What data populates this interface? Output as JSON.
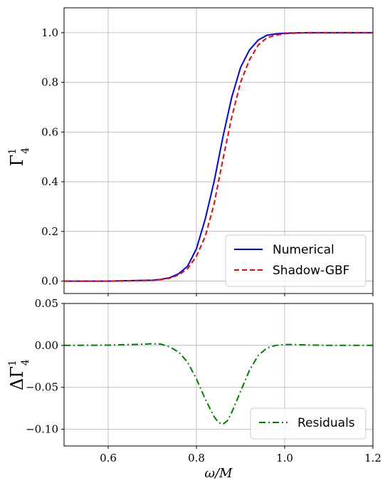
{
  "chart_data": [
    {
      "type": "line",
      "ylabel": "Γ",
      "ylabel_sup": "1",
      "ylabel_sub": "4",
      "xlim": [
        0.5,
        1.2
      ],
      "ylim": [
        -0.05,
        1.1
      ],
      "xticks": [
        0.6,
        0.8,
        1.0,
        1.2
      ],
      "xtick_labels": [
        "0.6",
        "0.8",
        "1.0",
        "1.2"
      ],
      "show_xtick_labels": false,
      "yticks": [
        0.0,
        0.2,
        0.4,
        0.6,
        0.8,
        1.0
      ],
      "ytick_labels": [
        "0.0",
        "0.2",
        "0.4",
        "0.6",
        "0.8",
        "1.0"
      ],
      "grid": true,
      "legend": "bottom-right",
      "series": [
        {
          "name": "Numerical",
          "color": "#0000ff",
          "style": "solid",
          "x": [
            0.5,
            0.6,
            0.7,
            0.72,
            0.74,
            0.76,
            0.78,
            0.8,
            0.82,
            0.84,
            0.86,
            0.88,
            0.9,
            0.92,
            0.94,
            0.96,
            0.98,
            1.0,
            1.02,
            1.05,
            1.1,
            1.2
          ],
          "y": [
            0.0,
            0.0,
            0.004,
            0.007,
            0.014,
            0.03,
            0.06,
            0.13,
            0.25,
            0.4,
            0.58,
            0.74,
            0.86,
            0.93,
            0.97,
            0.99,
            0.995,
            0.998,
            0.999,
            1.0,
            1.0,
            1.0
          ]
        },
        {
          "name": "Shadow-GBF",
          "color": "#ff0000",
          "style": "dashed",
          "x": [
            0.5,
            0.6,
            0.7,
            0.72,
            0.74,
            0.76,
            0.78,
            0.8,
            0.82,
            0.84,
            0.86,
            0.88,
            0.9,
            0.92,
            0.94,
            0.96,
            0.98,
            1.0,
            1.02,
            1.05,
            1.1,
            1.2
          ],
          "y": [
            0.0,
            0.0,
            0.003,
            0.006,
            0.012,
            0.025,
            0.05,
            0.1,
            0.18,
            0.31,
            0.49,
            0.66,
            0.8,
            0.89,
            0.95,
            0.98,
            0.99,
            0.996,
            0.998,
            1.0,
            1.0,
            1.0
          ]
        }
      ]
    },
    {
      "type": "line",
      "xlabel": "ω/M",
      "ylabel": "ΔΓ",
      "ylabel_sup": "1",
      "ylabel_sub": "4",
      "xlim": [
        0.5,
        1.2
      ],
      "ylim": [
        -0.12,
        0.05
      ],
      "xticks": [
        0.6,
        0.8,
        1.0,
        1.2
      ],
      "xtick_labels": [
        "0.6",
        "0.8",
        "1.0",
        "1.2"
      ],
      "yticks": [
        -0.1,
        -0.05,
        0.0,
        0.05
      ],
      "ytick_labels": [
        "−0.10",
        "−0.05",
        "0.00",
        "0.05"
      ],
      "grid": true,
      "legend": "bottom-right",
      "series": [
        {
          "name": "Residuals",
          "color": "#008000",
          "style": "dashdot",
          "x": [
            0.5,
            0.6,
            0.68,
            0.7,
            0.72,
            0.74,
            0.76,
            0.78,
            0.8,
            0.82,
            0.84,
            0.85,
            0.86,
            0.87,
            0.88,
            0.9,
            0.92,
            0.94,
            0.96,
            0.98,
            1.0,
            1.02,
            1.05,
            1.1,
            1.2
          ],
          "y": [
            0.0,
            0.0003,
            0.0015,
            0.002,
            0.0015,
            -0.002,
            -0.008,
            -0.02,
            -0.04,
            -0.064,
            -0.085,
            -0.092,
            -0.094,
            -0.09,
            -0.08,
            -0.055,
            -0.03,
            -0.012,
            -0.003,
            0.0,
            0.001,
            0.001,
            0.0005,
            0.0,
            0.0
          ]
        }
      ]
    }
  ]
}
